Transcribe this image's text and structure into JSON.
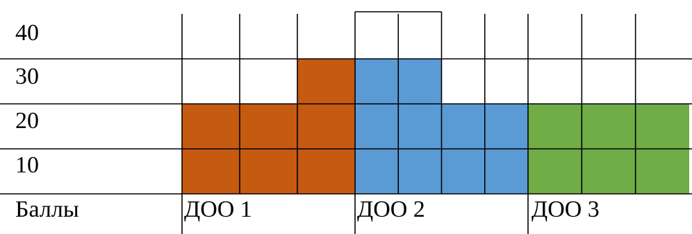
{
  "chart_data": {
    "type": "bar",
    "title": "",
    "xlabel": "",
    "ylabel": "",
    "y_ticks": [
      "10",
      "20",
      "30",
      "40"
    ],
    "ylim": [
      0,
      40
    ],
    "row_header_label": "Баллы",
    "grid": true,
    "groups": [
      {
        "name": "ДОО 1",
        "color": "#C55A11",
        "values": [
          20,
          20,
          30
        ]
      },
      {
        "name": "ДОО 2",
        "color": "#5B9BD5",
        "values": [
          30,
          30,
          20,
          20
        ]
      },
      {
        "name": "ДОО 3",
        "color": "#70AD47",
        "values": [
          20,
          20,
          20
        ]
      }
    ]
  }
}
